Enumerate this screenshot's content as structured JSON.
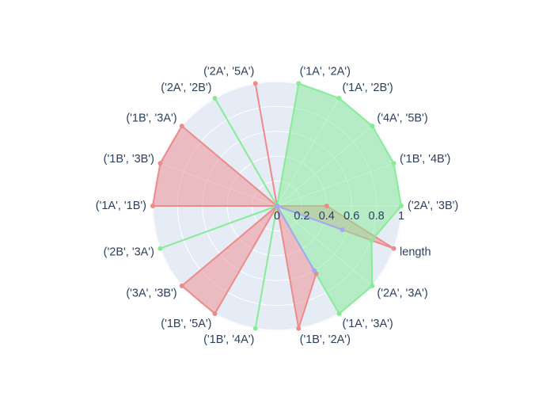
{
  "chart_data": {
    "type": "polar",
    "theta": [
      "('2A', '3B')",
      "('1B', '4B')",
      "('4A', '5B')",
      "('1A', '2B')",
      "('1A', '2A')",
      "('2A', '5A')",
      "('2A', '2B')",
      "('1B', '3A')",
      "('1B', '3B')",
      "('1A', '1B')",
      "('2B', '3A')",
      "('3A', '3B')",
      "('1B', '5A')",
      "('1B', '4A')",
      "('1B', '2A')",
      "('1A', '3A')",
      "('2A', '3A')",
      "length"
    ],
    "series": [
      {
        "color": "#ef8a8a",
        "values": [
          0.4,
          0,
          0,
          0,
          0,
          1,
          0,
          1,
          1,
          1,
          0,
          1,
          1,
          0,
          1,
          0.63,
          0,
          1
        ]
      },
      {
        "color": "#86ec96",
        "values": [
          1,
          1,
          1,
          1,
          1,
          0,
          1,
          0,
          0,
          0,
          1,
          0,
          0,
          1,
          0,
          1,
          1,
          0.81
        ]
      },
      {
        "color": "#a3a8f5",
        "values": [
          0,
          0,
          0,
          0,
          0,
          0,
          0,
          0,
          0,
          0,
          0,
          0,
          0,
          0,
          0,
          0.6,
          0,
          0.56
        ]
      }
    ],
    "rlim": [
      0,
      1
    ],
    "rticks": [
      0,
      0.2,
      0.4,
      0.6,
      0.8,
      1
    ],
    "grid": true
  }
}
